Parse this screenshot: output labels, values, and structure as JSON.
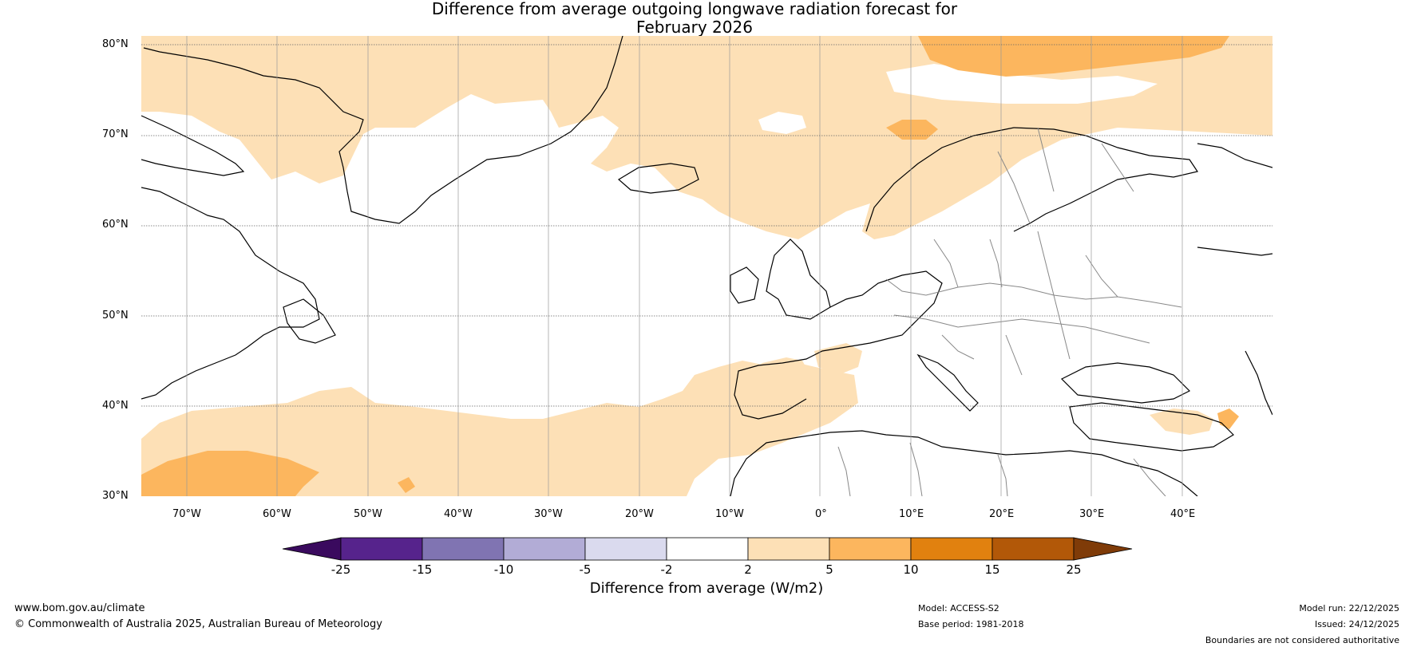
{
  "title": {
    "line1": "Difference from average outgoing longwave radiation forecast for",
    "line2": "February 2026"
  },
  "map": {
    "lat_labels": [
      "80°N",
      "70°N",
      "60°N",
      "50°N",
      "40°N",
      "30°N"
    ],
    "lon_labels": [
      "70°W",
      "60°W",
      "50°W",
      "40°W",
      "30°W",
      "20°W",
      "10°W",
      "0°",
      "10°E",
      "20°E",
      "30°E",
      "40°E"
    ]
  },
  "colorbar": {
    "title": "Difference from average (W/m2)",
    "tick_labels": [
      "-25",
      "-15",
      "-10",
      "-5",
      "-2",
      "2",
      "5",
      "10",
      "15",
      "25"
    ],
    "colors": [
      "#3a0a5e",
      "#56238c",
      "#8074b2",
      "#b2acd6",
      "#dadaee",
      "#ffffff",
      "#fde0b6",
      "#fcb65e",
      "#e1810f",
      "#b25808",
      "#7f3b08"
    ]
  },
  "footer": {
    "website": "www.bom.gov.au/climate",
    "copyright": "© Commonwealth of Australia 2025, Australian Bureau of Meteorology",
    "model": "Model: ACCESS-S2",
    "base_period": "Base period: 1981-2018",
    "model_run": "Model run: 22/12/2025",
    "issued": "Issued: 24/12/2025",
    "disclaimer": "Boundaries are not considered authoritative"
  }
}
